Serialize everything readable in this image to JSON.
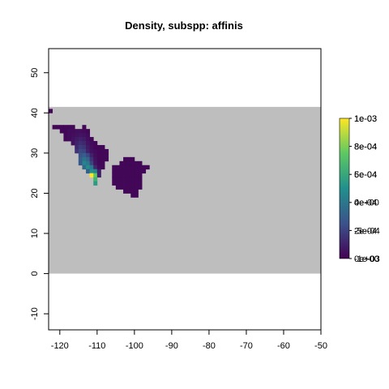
{
  "chart_data": {
    "type": "heatmap",
    "title": "Density, subspp: affinis",
    "xlabel": "",
    "ylabel": "",
    "xlim": [
      -123,
      -50
    ],
    "ylim": [
      -14,
      56
    ],
    "x_ticks": [
      -120,
      -110,
      -100,
      -90,
      -80,
      -70,
      -60,
      -50
    ],
    "y_ticks": [
      -10,
      0,
      10,
      20,
      30,
      40,
      50
    ],
    "raster_extent": {
      "xmin": -123,
      "xmax": -50,
      "ymin": 0,
      "ymax": 41.5
    },
    "cell_size": 1,
    "na_color": "#bebebe",
    "colorbar": {
      "palette": [
        "#440154",
        "#3b528b",
        "#21908c",
        "#5dc863",
        "#fde725"
      ],
      "tick_labels": [
        "0e+00",
        "2e-04",
        "4e-04",
        "6e-04",
        "8e-04",
        "1e-03"
      ],
      "overlapping_labels": [
        "1e-03",
        "8e-04",
        "5e-04",
        "0e+00",
        "-5e-04",
        "-1e-03"
      ],
      "range": [
        0,
        0.001
      ]
    },
    "cells_note": "density values per 1-degree cell, x = cell west edge longitude, y = cell south edge latitude",
    "cells": [
      [
        -123,
        40,
        2e-05
      ],
      [
        -122,
        36,
        2e-05
      ],
      [
        -121,
        36,
        2e-05
      ],
      [
        -120,
        36,
        2e-05
      ],
      [
        -119,
        36,
        2e-05
      ],
      [
        -118,
        36,
        2e-05
      ],
      [
        -117,
        36,
        2e-05
      ],
      [
        -114,
        36,
        2e-05
      ],
      [
        -120,
        35,
        2e-05
      ],
      [
        -119,
        35,
        2e-05
      ],
      [
        -118,
        35,
        3e-05
      ],
      [
        -117,
        35,
        3e-05
      ],
      [
        -116,
        35,
        4e-05
      ],
      [
        -115,
        35,
        4e-05
      ],
      [
        -114,
        35,
        3e-05
      ],
      [
        -113,
        35,
        2e-05
      ],
      [
        -119,
        34,
        2e-05
      ],
      [
        -118,
        34,
        3e-05
      ],
      [
        -117,
        34,
        4e-05
      ],
      [
        -116,
        34,
        5e-05
      ],
      [
        -115,
        34,
        6e-05
      ],
      [
        -114,
        34,
        5e-05
      ],
      [
        -113,
        34,
        3e-05
      ],
      [
        -119,
        33,
        2e-05
      ],
      [
        -118,
        33,
        3e-05
      ],
      [
        -117,
        33,
        5e-05
      ],
      [
        -116,
        33,
        8e-05
      ],
      [
        -115,
        33,
        0.0001
      ],
      [
        -114,
        33,
        8e-05
      ],
      [
        -113,
        33,
        4e-05
      ],
      [
        -112,
        33,
        2e-05
      ],
      [
        -117,
        32,
        5e-05
      ],
      [
        -116,
        32,
        0.0001
      ],
      [
        -115,
        32,
        0.00014
      ],
      [
        -114,
        32,
        0.00012
      ],
      [
        -113,
        32,
        6e-05
      ],
      [
        -112,
        32,
        3e-05
      ],
      [
        -111,
        32,
        2e-05
      ],
      [
        -116,
        31,
        0.00012
      ],
      [
        -115,
        31,
        0.00018
      ],
      [
        -114,
        31,
        0.00016
      ],
      [
        -113,
        31,
        8e-05
      ],
      [
        -112,
        31,
        4e-05
      ],
      [
        -111,
        31,
        2e-05
      ],
      [
        -110,
        31,
        2e-05
      ],
      [
        -109,
        31,
        2e-05
      ],
      [
        -116,
        30,
        0.00015
      ],
      [
        -115,
        30,
        0.00022
      ],
      [
        -114,
        30,
        0.0002
      ],
      [
        -113,
        30,
        0.0001
      ],
      [
        -112,
        30,
        5e-05
      ],
      [
        -111,
        30,
        3e-05
      ],
      [
        -110,
        30,
        2e-05
      ],
      [
        -109,
        30,
        2e-05
      ],
      [
        -108,
        30,
        2e-05
      ],
      [
        -115,
        29,
        0.00025
      ],
      [
        -114,
        29,
        0.0003
      ],
      [
        -113,
        29,
        0.00022
      ],
      [
        -112,
        29,
        0.0001
      ],
      [
        -111,
        29,
        4e-05
      ],
      [
        -110,
        29,
        2e-05
      ],
      [
        -109,
        29,
        2e-05
      ],
      [
        -108,
        29,
        2e-05
      ],
      [
        -115,
        28,
        0.0003
      ],
      [
        -114,
        28,
        0.00038
      ],
      [
        -113,
        28,
        0.00032
      ],
      [
        -112,
        28,
        0.00015
      ],
      [
        -111,
        28,
        5e-05
      ],
      [
        -110,
        28,
        2e-05
      ],
      [
        -109,
        28,
        2e-05
      ],
      [
        -108,
        28,
        2e-05
      ],
      [
        -103,
        28,
        2e-05
      ],
      [
        -102,
        28,
        2e-05
      ],
      [
        -101,
        28,
        2e-05
      ],
      [
        -115,
        27,
        0.00028
      ],
      [
        -114,
        27,
        0.00045
      ],
      [
        -113,
        27,
        0.0004
      ],
      [
        -112,
        27,
        0.0002
      ],
      [
        -111,
        27,
        6e-05
      ],
      [
        -110,
        27,
        2e-05
      ],
      [
        -109,
        27,
        2e-05
      ],
      [
        -104,
        27,
        2e-05
      ],
      [
        -103,
        27,
        2e-05
      ],
      [
        -102,
        27,
        2e-05
      ],
      [
        -101,
        27,
        2e-05
      ],
      [
        -100,
        27,
        2e-05
      ],
      [
        -99,
        27,
        2e-05
      ],
      [
        -114,
        26,
        0.00035
      ],
      [
        -113,
        26,
        0.00048
      ],
      [
        -112,
        26,
        0.0004
      ],
      [
        -111,
        26,
        0.00012
      ],
      [
        -110,
        26,
        3e-05
      ],
      [
        -109,
        26,
        2e-05
      ],
      [
        -106,
        26,
        2e-05
      ],
      [
        -105,
        26,
        2e-05
      ],
      [
        -104,
        26,
        2e-05
      ],
      [
        -103,
        26,
        2e-05
      ],
      [
        -102,
        26,
        2e-05
      ],
      [
        -101,
        26,
        2e-05
      ],
      [
        -100,
        26,
        2e-05
      ],
      [
        -99,
        26,
        2e-05
      ],
      [
        -98,
        26,
        2e-05
      ],
      [
        -97,
        26,
        2e-05
      ],
      [
        -113,
        25,
        0.0003
      ],
      [
        -112,
        25,
        0.0005
      ],
      [
        -111,
        25,
        0.00045
      ],
      [
        -110,
        25,
        0.0001
      ],
      [
        -106,
        25,
        2e-05
      ],
      [
        -105,
        25,
        2e-05
      ],
      [
        -104,
        25,
        2e-05
      ],
      [
        -103,
        25,
        2e-05
      ],
      [
        -102,
        25,
        2e-05
      ],
      [
        -101,
        25,
        2e-05
      ],
      [
        -100,
        25,
        2e-05
      ],
      [
        -99,
        25,
        2e-05
      ],
      [
        -98,
        25,
        2e-05
      ],
      [
        -112,
        24,
        0.001
      ],
      [
        -111,
        24,
        0.00075
      ],
      [
        -110,
        24,
        0.0001
      ],
      [
        -106,
        24,
        2e-05
      ],
      [
        -105,
        24,
        2e-05
      ],
      [
        -104,
        24,
        2e-05
      ],
      [
        -103,
        24,
        2e-05
      ],
      [
        -102,
        24,
        2e-05
      ],
      [
        -101,
        24,
        2e-05
      ],
      [
        -100,
        24,
        2e-05
      ],
      [
        -99,
        24,
        2e-05
      ],
      [
        -111,
        23,
        0.00065
      ],
      [
        -106,
        23,
        2e-05
      ],
      [
        -105,
        23,
        2e-05
      ],
      [
        -104,
        23,
        2e-05
      ],
      [
        -103,
        23,
        2e-05
      ],
      [
        -102,
        23,
        2e-05
      ],
      [
        -101,
        23,
        2e-05
      ],
      [
        -100,
        23,
        2e-05
      ],
      [
        -99,
        23,
        2e-05
      ],
      [
        -111,
        22,
        0.00055
      ],
      [
        -106,
        22,
        2e-05
      ],
      [
        -105,
        22,
        2e-05
      ],
      [
        -104,
        22,
        2e-05
      ],
      [
        -103,
        22,
        2e-05
      ],
      [
        -102,
        22,
        2e-05
      ],
      [
        -101,
        22,
        2e-05
      ],
      [
        -100,
        22,
        2e-05
      ],
      [
        -99,
        22,
        2e-05
      ],
      [
        -105,
        21,
        2e-05
      ],
      [
        -104,
        21,
        2e-05
      ],
      [
        -103,
        21,
        2e-05
      ],
      [
        -102,
        21,
        2e-05
      ],
      [
        -101,
        21,
        2e-05
      ],
      [
        -100,
        21,
        2e-05
      ],
      [
        -99,
        21,
        2e-05
      ],
      [
        -103,
        20,
        2e-05
      ],
      [
        -102,
        20,
        2e-05
      ],
      [
        -101,
        20,
        2e-05
      ],
      [
        -100,
        20,
        2e-05
      ],
      [
        -101,
        19,
        2e-05
      ],
      [
        -100,
        19,
        2e-05
      ]
    ]
  }
}
